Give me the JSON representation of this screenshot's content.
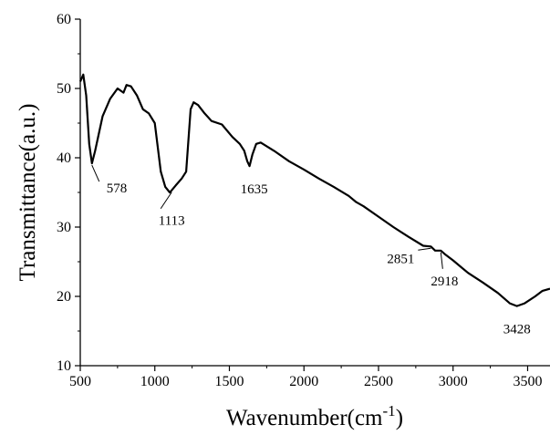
{
  "chart_data": {
    "type": "line",
    "title": "",
    "xlabel": "Wavenumber(cm",
    "xlabel_sup": "-1",
    "xlabel_close": ")",
    "ylabel": "Transmittance(a.u.)",
    "xlim": [
      500,
      3650
    ],
    "ylim": [
      10,
      60
    ],
    "x_ticks": [
      500,
      1000,
      1500,
      2000,
      2500,
      3000,
      3500
    ],
    "y_ticks": [
      10,
      20,
      30,
      40,
      50,
      60
    ],
    "grid": false,
    "line_color": "#000000",
    "series": [
      {
        "x": [
          500,
          520,
          540,
          560,
          578,
          600,
          650,
          700,
          750,
          790,
          810,
          840,
          880,
          920,
          960,
          1000,
          1040,
          1070,
          1100,
          1113,
          1140,
          1180,
          1210,
          1240,
          1260,
          1290,
          1330,
          1380,
          1450,
          1520,
          1570,
          1600,
          1620,
          1635,
          1655,
          1680,
          1710,
          1800,
          1900,
          2000,
          2100,
          2200,
          2300,
          2350,
          2400,
          2500,
          2600,
          2700,
          2800,
          2851,
          2880,
          2918,
          2950,
          3000,
          3100,
          3200,
          3300,
          3380,
          3428,
          3480,
          3550,
          3600,
          3650
        ],
        "y": [
          51.0,
          52.0,
          49.0,
          42.0,
          39.2,
          41.0,
          46.0,
          48.5,
          50.0,
          49.4,
          50.5,
          50.3,
          49.0,
          47.0,
          46.4,
          45.0,
          38.0,
          35.8,
          35.0,
          35.3,
          36.0,
          37.0,
          38.0,
          47.0,
          48.0,
          47.6,
          46.5,
          45.3,
          44.8,
          43.0,
          42.0,
          41.0,
          39.5,
          38.8,
          40.5,
          42.0,
          42.2,
          41.0,
          39.5,
          38.3,
          37.0,
          35.8,
          34.5,
          33.6,
          33.0,
          31.5,
          30.0,
          28.6,
          27.3,
          27.2,
          26.6,
          26.6,
          26.0,
          25.2,
          23.4,
          22.0,
          20.5,
          19.0,
          18.6,
          19.0,
          20.0,
          20.8,
          21.1
        ]
      }
    ],
    "annotations": [
      {
        "text": "578",
        "x": 578,
        "y": 39.2
      },
      {
        "text": "1113",
        "x": 1113,
        "y": 35.3
      },
      {
        "text": "1635",
        "x": 1635,
        "y": 38.8
      },
      {
        "text": "2851",
        "x": 2851,
        "y": 27.2
      },
      {
        "text": "2918",
        "x": 2918,
        "y": 26.6
      },
      {
        "text": "3428",
        "x": 3428,
        "y": 18.6
      }
    ]
  }
}
